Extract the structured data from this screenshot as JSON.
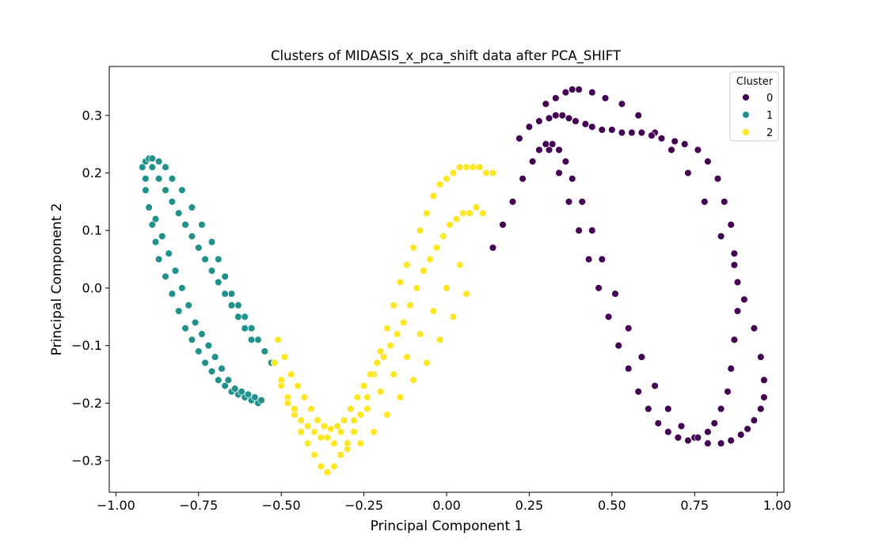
{
  "chart_data": {
    "type": "scatter",
    "title": "Clusters of MIDASIS_x_pca_shift data after PCA_SHIFT",
    "xlabel": "Principal Component 1",
    "ylabel": "Principal Component 2",
    "xlim": [
      -1.02,
      1.02
    ],
    "ylim": [
      -0.355,
      0.385
    ],
    "x_ticks": [
      -1.0,
      -0.75,
      -0.5,
      -0.25,
      0.0,
      0.25,
      0.5,
      0.75,
      1.0
    ],
    "x_tick_labels": [
      "−1.00",
      "−0.75",
      "−0.50",
      "−0.25",
      "0.00",
      "0.25",
      "0.50",
      "0.75",
      "1.00"
    ],
    "y_ticks": [
      -0.3,
      -0.2,
      -0.1,
      0.0,
      0.1,
      0.2,
      0.3
    ],
    "y_tick_labels": [
      "−0.3",
      "−0.2",
      "−0.1",
      "0.0",
      "0.1",
      "0.2",
      "0.3"
    ],
    "grid": false,
    "legend": {
      "title": "Cluster",
      "placement": "top-right",
      "entries": [
        "0",
        "1",
        "2"
      ]
    },
    "series": [
      {
        "name": "0",
        "color": "#440154",
        "x": [
          0.3,
          0.33,
          0.36,
          0.38,
          0.4,
          0.44,
          0.48,
          0.53,
          0.58,
          0.63,
          0.68,
          0.73,
          0.78,
          0.83,
          0.87,
          0.9,
          0.93,
          0.95,
          0.96,
          0.96,
          0.95,
          0.93,
          0.91,
          0.89,
          0.86,
          0.83,
          0.79,
          0.75,
          0.71,
          0.67,
          0.63,
          0.59,
          0.55,
          0.51,
          0.47,
          0.44,
          0.41,
          0.38,
          0.36,
          0.34,
          0.32,
          0.3,
          0.28,
          0.26,
          0.23,
          0.2,
          0.17,
          0.14,
          0.31,
          0.34,
          0.37,
          0.4,
          0.43,
          0.46,
          0.49,
          0.52,
          0.55,
          0.58,
          0.61,
          0.64,
          0.67,
          0.7,
          0.73,
          0.76,
          0.79,
          0.81,
          0.83,
          0.85,
          0.86,
          0.87,
          0.88,
          0.88,
          0.87,
          0.86,
          0.84,
          0.82,
          0.79,
          0.76,
          0.72,
          0.69,
          0.65,
          0.62,
          0.59,
          0.56,
          0.53,
          0.5,
          0.47,
          0.44,
          0.42,
          0.39,
          0.37,
          0.35,
          0.33,
          0.31,
          0.28,
          0.25,
          0.22
        ],
        "y": [
          0.32,
          0.33,
          0.34,
          0.345,
          0.345,
          0.34,
          0.33,
          0.32,
          0.3,
          0.27,
          0.24,
          0.2,
          0.15,
          0.09,
          0.04,
          -0.02,
          -0.07,
          -0.12,
          -0.16,
          -0.19,
          -0.21,
          -0.23,
          -0.245,
          -0.255,
          -0.265,
          -0.27,
          -0.27,
          -0.26,
          -0.24,
          -0.21,
          -0.17,
          -0.12,
          -0.07,
          -0.01,
          0.05,
          0.1,
          0.15,
          0.19,
          0.22,
          0.24,
          0.25,
          0.25,
          0.24,
          0.22,
          0.19,
          0.15,
          0.11,
          0.07,
          0.24,
          0.2,
          0.15,
          0.1,
          0.05,
          0.0,
          -0.05,
          -0.1,
          -0.14,
          -0.18,
          -0.21,
          -0.235,
          -0.25,
          -0.26,
          -0.265,
          -0.26,
          -0.25,
          -0.235,
          -0.21,
          -0.18,
          -0.14,
          -0.09,
          -0.04,
          0.01,
          0.06,
          0.11,
          0.15,
          0.19,
          0.22,
          0.24,
          0.25,
          0.255,
          0.26,
          0.265,
          0.27,
          0.27,
          0.27,
          0.275,
          0.275,
          0.28,
          0.285,
          0.29,
          0.295,
          0.3,
          0.3,
          0.295,
          0.29,
          0.28,
          0.26
        ]
      },
      {
        "name": "1",
        "color": "#21918c",
        "x": [
          -0.91,
          -0.92,
          -0.91,
          -0.9,
          -0.89,
          -0.87,
          -0.85,
          -0.83,
          -0.8,
          -0.77,
          -0.74,
          -0.71,
          -0.69,
          -0.67,
          -0.65,
          -0.63,
          -0.61,
          -0.59,
          -0.57,
          -0.55,
          -0.53,
          -0.91,
          -0.9,
          -0.89,
          -0.88,
          -0.87,
          -0.85,
          -0.83,
          -0.81,
          -0.79,
          -0.77,
          -0.75,
          -0.73,
          -0.71,
          -0.69,
          -0.67,
          -0.65,
          -0.63,
          -0.61,
          -0.59,
          -0.57,
          -0.89,
          -0.87,
          -0.85,
          -0.83,
          -0.81,
          -0.79,
          -0.77,
          -0.75,
          -0.73,
          -0.71,
          -0.69,
          -0.67,
          -0.65,
          -0.63,
          -0.61,
          -0.59,
          -0.88,
          -0.86,
          -0.84,
          -0.82,
          -0.8,
          -0.78,
          -0.76,
          -0.74,
          -0.72,
          -0.7,
          -0.68,
          -0.66,
          -0.64,
          -0.62,
          -0.6,
          -0.58,
          -0.56
        ],
        "y": [
          0.19,
          0.21,
          0.22,
          0.225,
          0.225,
          0.22,
          0.21,
          0.19,
          0.17,
          0.14,
          0.11,
          0.08,
          0.05,
          0.02,
          -0.01,
          -0.03,
          -0.05,
          -0.07,
          -0.09,
          -0.11,
          -0.13,
          0.17,
          0.14,
          0.11,
          0.08,
          0.05,
          0.02,
          -0.01,
          -0.04,
          -0.07,
          -0.09,
          -0.11,
          -0.13,
          -0.145,
          -0.16,
          -0.17,
          -0.18,
          -0.185,
          -0.19,
          -0.195,
          -0.2,
          0.21,
          0.19,
          0.17,
          0.15,
          0.13,
          0.11,
          0.09,
          0.07,
          0.05,
          0.03,
          0.01,
          -0.01,
          -0.03,
          -0.05,
          -0.07,
          -0.09,
          0.12,
          0.09,
          0.06,
          0.03,
          0.0,
          -0.03,
          -0.06,
          -0.08,
          -0.1,
          -0.12,
          -0.14,
          -0.16,
          -0.175,
          -0.18,
          -0.185,
          -0.19,
          -0.195
        ]
      },
      {
        "name": "2",
        "color": "#fde725",
        "x": [
          -0.52,
          -0.5,
          -0.48,
          -0.46,
          -0.44,
          -0.42,
          -0.4,
          -0.38,
          -0.36,
          -0.34,
          -0.32,
          -0.3,
          -0.28,
          -0.26,
          -0.24,
          -0.22,
          -0.2,
          -0.18,
          -0.16,
          -0.14,
          -0.12,
          -0.1,
          -0.08,
          -0.06,
          -0.04,
          -0.02,
          0.0,
          0.02,
          0.04,
          0.06,
          0.08,
          0.1,
          0.12,
          0.14,
          -0.51,
          -0.49,
          -0.47,
          -0.45,
          -0.43,
          -0.41,
          -0.39,
          -0.37,
          -0.35,
          -0.33,
          -0.31,
          -0.29,
          -0.27,
          -0.25,
          -0.23,
          -0.21,
          -0.19,
          -0.17,
          -0.15,
          -0.13,
          -0.11,
          -0.09,
          -0.07,
          -0.05,
          -0.03,
          -0.01,
          0.01,
          0.03,
          0.05,
          0.07,
          0.09,
          0.11,
          -0.5,
          -0.46,
          -0.42,
          -0.38,
          -0.34,
          -0.3,
          -0.26,
          -0.22,
          -0.18,
          -0.14,
          -0.1,
          -0.06,
          -0.02,
          0.02,
          0.06,
          -0.48,
          -0.44,
          -0.4,
          -0.36,
          -0.32,
          -0.28,
          -0.24,
          -0.2,
          -0.16,
          -0.12,
          -0.08,
          -0.04,
          0.0,
          0.04
        ],
        "y": [
          -0.13,
          -0.16,
          -0.19,
          -0.22,
          -0.25,
          -0.27,
          -0.29,
          -0.31,
          -0.32,
          -0.31,
          -0.29,
          -0.27,
          -0.25,
          -0.22,
          -0.19,
          -0.15,
          -0.11,
          -0.07,
          -0.03,
          0.01,
          0.04,
          0.07,
          0.1,
          0.13,
          0.16,
          0.18,
          0.19,
          0.2,
          0.21,
          0.21,
          0.21,
          0.21,
          0.2,
          0.2,
          -0.09,
          -0.12,
          -0.15,
          -0.17,
          -0.19,
          -0.21,
          -0.23,
          -0.24,
          -0.245,
          -0.24,
          -0.23,
          -0.21,
          -0.19,
          -0.17,
          -0.15,
          -0.13,
          -0.12,
          -0.1,
          -0.08,
          -0.06,
          -0.03,
          0.0,
          0.03,
          0.05,
          0.07,
          0.09,
          0.11,
          0.12,
          0.13,
          0.13,
          0.14,
          0.13,
          -0.17,
          -0.21,
          -0.24,
          -0.26,
          -0.27,
          -0.28,
          -0.27,
          -0.25,
          -0.22,
          -0.19,
          -0.16,
          -0.13,
          -0.09,
          -0.05,
          -0.01,
          -0.2,
          -0.23,
          -0.25,
          -0.26,
          -0.25,
          -0.23,
          -0.21,
          -0.18,
          -0.15,
          -0.12,
          -0.08,
          -0.04,
          0.0,
          0.04
        ]
      }
    ]
  }
}
